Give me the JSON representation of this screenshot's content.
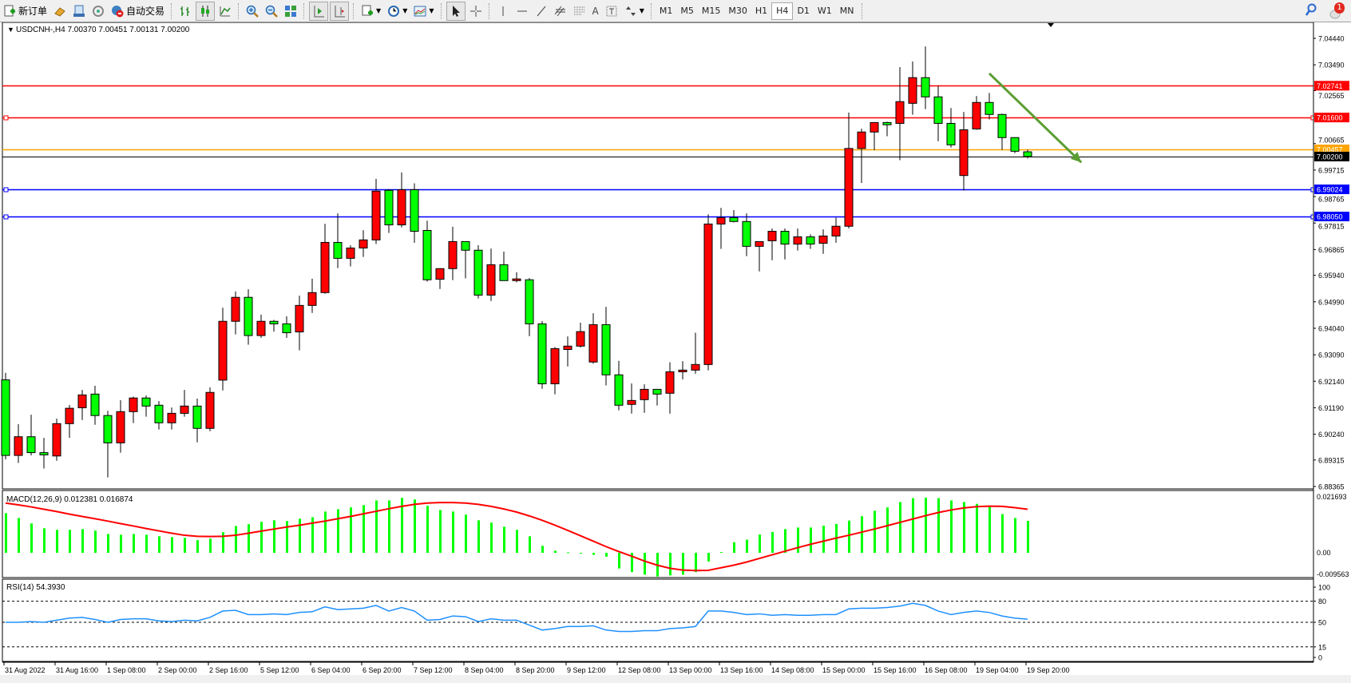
{
  "toolbar": {
    "new_order_label": "新订单",
    "auto_trading_label": "自动交易",
    "tools": [
      "line-vertical",
      "line-horizontal",
      "trendline",
      "fibonacci",
      "grid",
      "text",
      "label",
      "arrows"
    ],
    "text_tool_label": "A",
    "timeframes": [
      "M1",
      "M5",
      "M15",
      "M30",
      "H1",
      "H4",
      "D1",
      "W1",
      "MN"
    ],
    "active_timeframe": "H4",
    "notification_count": "1"
  },
  "chart": {
    "header": "USDCNH-,H4  7.00370 7.00451 7.00131 7.00200",
    "price_ticks": [
      "7.04440",
      "7.03490",
      "7.02565",
      "7.00665",
      "6.99715",
      "6.98765",
      "6.97815",
      "6.96865",
      "6.95940",
      "6.94990",
      "6.94040",
      "6.93090",
      "6.92140",
      "6.91190",
      "6.90240",
      "6.89315",
      "6.88365"
    ],
    "hlines": [
      {
        "price": 7.02741,
        "label": "7.02741",
        "color": "#ff0000",
        "handle": false
      },
      {
        "price": 7.016,
        "label": "7.01600",
        "color": "#ff0000",
        "handle": true
      },
      {
        "price": 7.00457,
        "label": "7.00457",
        "color": "#ffa500",
        "handle": false
      },
      {
        "price": 7.002,
        "label": "7.00200",
        "color": "#000000",
        "handle": false
      },
      {
        "price": 6.99024,
        "label": "6.99024",
        "color": "#0000ff",
        "handle": true
      },
      {
        "price": 6.9805,
        "label": "6.98050",
        "color": "#0000ff",
        "handle": true
      }
    ],
    "trend_arrow": {
      "bar1": 77,
      "price1": 7.0318,
      "bar2": 84.2,
      "price2": 6.9999,
      "color": "#5a9e32"
    },
    "time_labels": [
      "31 Aug 2022",
      "31 Aug 16:00",
      "1 Sep 08:00",
      "2 Sep 00:00",
      "2 Sep 16:00",
      "5 Sep 12:00",
      "6 Sep 04:00",
      "6 Sep 20:00",
      "7 Sep 12:00",
      "8 Sep 04:00",
      "8 Sep 20:00",
      "9 Sep 12:00",
      "12 Sep 08:00",
      "13 Sep 00:00",
      "13 Sep 16:00",
      "14 Sep 08:00",
      "15 Sep 00:00",
      "15 Sep 16:00",
      "16 Sep 08:00",
      "19 Sep 04:00",
      "19 Sep 20:00"
    ],
    "macd": {
      "header": "MACD(12,26,9) 0.012381 0.016874",
      "ticks": [
        "0.021693",
        "0.00",
        "-0.009563"
      ]
    },
    "rsi": {
      "header": "RSI(14) 54.3930",
      "ticks": [
        "100",
        "80",
        "50",
        "15",
        "0"
      ],
      "levels": [
        80,
        50,
        15
      ]
    }
  },
  "chart_data": {
    "type": "candlestick",
    "symbol": "USDCNH-",
    "timeframe": "H4",
    "up_color": "#ff0000",
    "down_color": "#00ff00",
    "price_range": [
      6.88365,
      7.0444
    ],
    "ohlc": [
      [
        6.9219,
        6.9244,
        6.8934,
        6.8948
      ],
      [
        6.8948,
        6.906,
        6.8921,
        6.9015
      ],
      [
        6.9015,
        6.9094,
        6.8948,
        6.8958
      ],
      [
        6.8958,
        6.9011,
        6.8901,
        6.895
      ],
      [
        6.8946,
        6.908,
        6.8929,
        6.9062
      ],
      [
        6.9062,
        6.9129,
        6.9011,
        6.9117
      ],
      [
        6.9119,
        6.9183,
        6.9075,
        6.9165
      ],
      [
        6.9168,
        6.9198,
        6.9058,
        6.9091
      ],
      [
        6.9091,
        6.9108,
        6.8869,
        6.8993
      ],
      [
        6.8993,
        6.9146,
        6.8958,
        6.9105
      ],
      [
        6.9105,
        6.9159,
        6.9064,
        6.9154
      ],
      [
        6.9154,
        6.9163,
        6.9087,
        6.9125
      ],
      [
        6.9128,
        6.9143,
        6.9041,
        6.9065
      ],
      [
        6.9065,
        6.912,
        6.9041,
        6.9099
      ],
      [
        6.9099,
        6.9183,
        6.9087,
        6.9125
      ],
      [
        6.9125,
        6.9152,
        6.8995,
        6.9045
      ],
      [
        6.9045,
        6.9192,
        6.9035,
        6.9174
      ],
      [
        6.9218,
        6.9478,
        6.9181,
        6.9429
      ],
      [
        6.9429,
        6.9536,
        6.9382,
        6.9515
      ],
      [
        6.9515,
        6.9544,
        6.9345,
        6.9378
      ],
      [
        6.9378,
        6.9453,
        6.937,
        6.9429
      ],
      [
        6.9429,
        6.9434,
        6.9392,
        6.942
      ],
      [
        6.942,
        6.9447,
        6.937,
        6.9388
      ],
      [
        6.9391,
        6.9521,
        6.9325,
        6.9486
      ],
      [
        6.9486,
        6.9582,
        6.9459,
        6.9532
      ],
      [
        6.9532,
        6.9779,
        6.9528,
        6.9712
      ],
      [
        6.9712,
        6.9816,
        6.962,
        6.9655
      ],
      [
        6.9655,
        6.9702,
        6.9626,
        6.9692
      ],
      [
        6.9692,
        6.9756,
        6.966,
        6.9721
      ],
      [
        6.9721,
        6.994,
        6.9706,
        6.9896
      ],
      [
        6.9899,
        6.9903,
        6.9746,
        6.9775
      ],
      [
        6.9775,
        6.9963,
        6.9766,
        6.9901
      ],
      [
        6.9901,
        6.9924,
        6.9711,
        6.9752
      ],
      [
        6.9755,
        6.979,
        6.9571,
        6.9578
      ],
      [
        6.958,
        6.9618,
        6.9545,
        6.9618
      ],
      [
        6.9618,
        6.9768,
        6.9577,
        6.9715
      ],
      [
        6.9715,
        6.9715,
        6.9583,
        6.9684
      ],
      [
        6.9684,
        6.9702,
        6.9511,
        6.9523
      ],
      [
        6.9523,
        6.969,
        6.9502,
        6.9632
      ],
      [
        6.9632,
        6.9679,
        6.9575,
        6.9575
      ],
      [
        6.9575,
        6.9605,
        6.9569,
        6.9581
      ],
      [
        6.9578,
        6.9584,
        6.9376,
        6.942
      ],
      [
        6.942,
        6.943,
        6.9187,
        6.9205
      ],
      [
        6.9205,
        6.9337,
        6.9167,
        6.9331
      ],
      [
        6.9328,
        6.9375,
        6.9267,
        6.934
      ],
      [
        6.934,
        6.9424,
        6.9335,
        6.9392
      ],
      [
        6.9283,
        6.9458,
        6.9277,
        6.9417
      ],
      [
        6.9417,
        6.9481,
        6.9199,
        6.9237
      ],
      [
        6.9237,
        6.9287,
        6.911,
        6.9128
      ],
      [
        6.9131,
        6.9206,
        6.9098,
        6.9145
      ],
      [
        6.9148,
        6.9203,
        6.9101,
        6.9185
      ],
      [
        6.9185,
        6.9185,
        6.9127,
        6.9168
      ],
      [
        6.9171,
        6.9282,
        6.9098,
        6.9248
      ],
      [
        6.9248,
        6.9286,
        6.9221,
        6.9254
      ],
      [
        6.9254,
        6.9388,
        6.9241,
        6.9274
      ],
      [
        6.9274,
        6.9813,
        6.9253,
        6.9778
      ],
      [
        6.9778,
        6.9836,
        6.9689,
        6.9801
      ],
      [
        6.9801,
        6.9828,
        6.9784,
        6.9787
      ],
      [
        6.9787,
        6.9816,
        6.9663,
        6.9698
      ],
      [
        6.9698,
        6.9715,
        6.9608,
        6.9715
      ],
      [
        6.9718,
        6.9762,
        6.9648,
        6.9752
      ],
      [
        6.9752,
        6.9762,
        6.9651,
        6.9706
      ],
      [
        6.9706,
        6.9762,
        6.9683,
        6.9732
      ],
      [
        6.9732,
        6.9741,
        6.9689,
        6.9706
      ],
      [
        6.9709,
        6.9759,
        6.9671,
        6.9735
      ],
      [
        6.9735,
        6.9801,
        6.9711,
        6.977
      ],
      [
        6.977,
        7.0178,
        6.9762,
        7.0049
      ],
      [
        7.0049,
        7.012,
        6.9925,
        7.0108
      ],
      [
        7.0108,
        7.0142,
        7.0043,
        7.0142
      ],
      [
        7.0142,
        7.0145,
        7.0093,
        7.0134
      ],
      [
        7.0139,
        7.0341,
        7.0007,
        7.0217
      ],
      [
        7.0211,
        7.0361,
        7.017,
        7.0303
      ],
      [
        7.0303,
        7.0415,
        7.019,
        7.0234
      ],
      [
        7.0234,
        7.0274,
        7.0075,
        7.0139
      ],
      [
        7.0139,
        7.0194,
        7.0052,
        7.0062
      ],
      [
        6.9952,
        7.018,
        6.9898,
        7.0116
      ],
      [
        7.0119,
        7.0237,
        7.0116,
        7.0214
      ],
      [
        7.0214,
        7.0248,
        7.0153,
        7.0171
      ],
      [
        7.0171,
        7.0174,
        7.0044,
        7.0088
      ],
      [
        7.0088,
        7.0088,
        7.0032,
        7.0039
      ],
      [
        7.0037,
        7.00451,
        7.00131,
        7.002
      ]
    ],
    "macd_hist": [
      0.0154,
      0.0135,
      0.0114,
      0.0095,
      0.0089,
      0.0089,
      0.0092,
      0.0086,
      0.0073,
      0.007,
      0.0073,
      0.007,
      0.0064,
      0.0061,
      0.0058,
      0.0049,
      0.0055,
      0.008,
      0.0104,
      0.0111,
      0.012,
      0.0126,
      0.0123,
      0.0132,
      0.0138,
      0.016,
      0.0169,
      0.0176,
      0.0185,
      0.0203,
      0.0203,
      0.0213,
      0.0207,
      0.0182,
      0.0166,
      0.016,
      0.0148,
      0.0126,
      0.0117,
      0.0101,
      0.0089,
      0.0064,
      0.0027,
      0.0008,
      0.0002,
      -0.0003,
      -0.0008,
      -0.0015,
      -0.0061,
      -0.0075,
      -0.0085,
      -0.0092,
      -0.0088,
      -0.0085,
      -0.0075,
      -0.0034,
      0.0003,
      0.0041,
      0.0051,
      0.0071,
      0.0081,
      0.0092,
      0.0098,
      0.0098,
      0.0105,
      0.0112,
      0.0125,
      0.0142,
      0.0163,
      0.0176,
      0.0197,
      0.0212,
      0.0214,
      0.0212,
      0.0203,
      0.0197,
      0.019,
      0.0178,
      0.015,
      0.0135,
      0.012381
    ],
    "macd_signal": [
      0.0193,
      0.0186,
      0.0178,
      0.0169,
      0.016,
      0.015,
      0.0141,
      0.0132,
      0.0123,
      0.0113,
      0.0104,
      0.0094,
      0.0085,
      0.0076,
      0.0068,
      0.0064,
      0.0063,
      0.0064,
      0.0068,
      0.0076,
      0.0084,
      0.0092,
      0.01,
      0.0107,
      0.0115,
      0.0123,
      0.0132,
      0.0141,
      0.0151,
      0.0161,
      0.0171,
      0.018,
      0.0188,
      0.0193,
      0.0195,
      0.0195,
      0.0193,
      0.0188,
      0.018,
      0.017,
      0.0158,
      0.0143,
      0.0126,
      0.0107,
      0.0087,
      0.0066,
      0.0045,
      0.0024,
      0.0005,
      -0.0013,
      -0.0032,
      -0.0048,
      -0.006,
      -0.0067,
      -0.0069,
      -0.0068,
      -0.0058,
      -0.0048,
      -0.0036,
      -0.0022,
      -0.0008,
      0.0006,
      0.002,
      0.0033,
      0.0045,
      0.0057,
      0.0068,
      0.008,
      0.0092,
      0.0105,
      0.0118,
      0.0131,
      0.0144,
      0.0156,
      0.0166,
      0.0174,
      0.0179,
      0.0181,
      0.018,
      0.0175,
      0.016874
    ],
    "macd_range": [
      -0.009563,
      0.021693
    ],
    "macd_color_hist": "#00ff00",
    "macd_color_signal": "#ff0000",
    "rsi": [
      50,
      50,
      51,
      50,
      53,
      56,
      57,
      54,
      50,
      54,
      55,
      55,
      52,
      51,
      53,
      52,
      57,
      66,
      67,
      61,
      61,
      62,
      61,
      64,
      65,
      72,
      68,
      69,
      70,
      74,
      66,
      71,
      66,
      53,
      54,
      59,
      58,
      51,
      55,
      53,
      53,
      46,
      39,
      41,
      44,
      44,
      45,
      39,
      37,
      37,
      38,
      38,
      41,
      42,
      44,
      66,
      66,
      64,
      61,
      62,
      60,
      61,
      60,
      60,
      61,
      61,
      69,
      70,
      70,
      71,
      73,
      77,
      74,
      66,
      61,
      64,
      66,
      64,
      59,
      56,
      54.393
    ],
    "rsi_range": [
      0,
      100
    ],
    "rsi_color": "#1e90ff"
  }
}
